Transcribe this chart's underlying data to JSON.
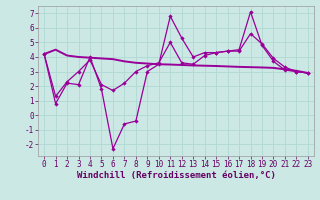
{
  "xlabel": "Windchill (Refroidissement éolien,°C)",
  "x": [
    0,
    1,
    2,
    3,
    4,
    5,
    6,
    7,
    8,
    9,
    10,
    11,
    12,
    13,
    14,
    15,
    16,
    17,
    18,
    19,
    20,
    21,
    22,
    23
  ],
  "line1": [
    4.2,
    4.5,
    4.1,
    4.0,
    3.95,
    3.9,
    3.85,
    3.7,
    3.6,
    3.55,
    3.5,
    3.48,
    3.45,
    3.42,
    3.4,
    3.38,
    3.35,
    3.32,
    3.3,
    3.28,
    3.25,
    3.15,
    3.05,
    2.9
  ],
  "line2": [
    4.2,
    0.8,
    2.2,
    2.1,
    4.0,
    1.8,
    -2.3,
    -0.6,
    -0.4,
    3.0,
    3.5,
    6.8,
    5.3,
    4.0,
    4.3,
    4.3,
    4.4,
    4.5,
    7.1,
    4.8,
    3.7,
    3.1,
    3.0,
    2.9
  ],
  "line3": [
    4.2,
    1.3,
    2.3,
    3.0,
    3.8,
    2.1,
    1.7,
    2.2,
    3.0,
    3.4,
    3.6,
    5.0,
    3.6,
    3.5,
    4.1,
    4.3,
    4.4,
    4.4,
    5.6,
    4.9,
    3.9,
    3.3,
    3.0,
    2.9
  ],
  "bg_color": "#cce8e4",
  "line_color": "#990099",
  "grid_color": "#b0d8d4",
  "ylim": [
    -2.8,
    7.5
  ],
  "yticks": [
    -2,
    -1,
    0,
    1,
    2,
    3,
    4,
    5,
    6,
    7
  ],
  "xtick_labels": [
    "0",
    "1",
    "2",
    "3",
    "4",
    "5",
    "6",
    "7",
    "8",
    "9",
    "10",
    "11",
    "12",
    "13",
    "14",
    "15",
    "16",
    "17",
    "18",
    "19",
    "20",
    "21",
    "22",
    "23"
  ],
  "xlabel_fontsize": 6.5,
  "tick_fontsize": 5.5
}
